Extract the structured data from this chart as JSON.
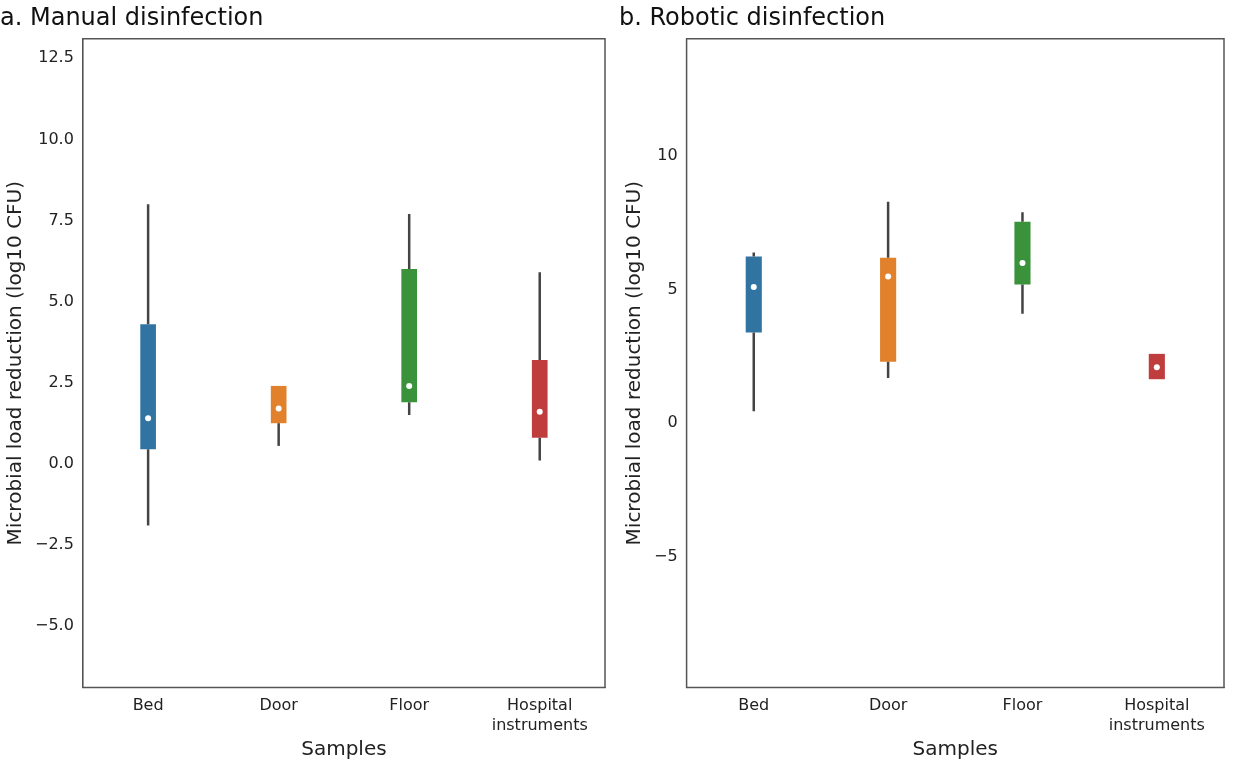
{
  "chart_data": [
    {
      "type": "box",
      "title": "a. Manual disinfection",
      "xlabel": "Samples",
      "ylabel": "Microbial load reduction (log10 CFU)",
      "categories": [
        "Bed",
        "Door",
        "Floor",
        "Hospital instruments"
      ],
      "colors": [
        "#3274a1",
        "#e1812c",
        "#3a923a",
        "#c03d3e"
      ],
      "boxes": [
        {
          "low": -1.9,
          "q1": 0.45,
          "median": 1.4,
          "q3": 4.3,
          "high": 8.0
        },
        {
          "low": 0.55,
          "q1": 1.25,
          "median": 1.7,
          "q3": 2.4,
          "high": 2.4
        },
        {
          "low": 1.5,
          "q1": 1.9,
          "median": 2.4,
          "q3": 6.0,
          "high": 7.7
        },
        {
          "low": 0.1,
          "q1": 0.8,
          "median": 1.6,
          "q3": 3.2,
          "high": 5.9
        }
      ],
      "ylim": [
        -6.9,
        13.1
      ],
      "yticks": [
        {
          "value": -5,
          "label": "−5.0"
        },
        {
          "value": -2.5,
          "label": "−2.5"
        },
        {
          "value": 0,
          "label": "0.0"
        },
        {
          "value": 2.5,
          "label": "2.5"
        },
        {
          "value": 5,
          "label": "5.0"
        },
        {
          "value": 7.5,
          "label": "7.5"
        },
        {
          "value": 10,
          "label": "10.0"
        },
        {
          "value": 12.5,
          "label": "12.5"
        }
      ],
      "grid": false,
      "legend": false
    },
    {
      "type": "box",
      "title": "b. Robotic disinfection",
      "xlabel": "Samples",
      "ylabel": "Microbial load reduction (log10 CFU)",
      "categories": [
        "Bed",
        "Door",
        "Floor",
        "Hospital instruments"
      ],
      "colors": [
        "#3274a1",
        "#e1812c",
        "#3a923a",
        "#c03d3e"
      ],
      "boxes": [
        {
          "low": 0.45,
          "q1": 3.4,
          "median": 5.1,
          "q3": 6.25,
          "high": 6.4
        },
        {
          "low": 1.7,
          "q1": 2.3,
          "median": 5.5,
          "q3": 6.2,
          "high": 8.3
        },
        {
          "low": 4.1,
          "q1": 5.2,
          "median": 6.0,
          "q3": 7.55,
          "high": 7.9
        },
        {
          "low": 1.65,
          "q1": 1.65,
          "median": 2.1,
          "q3": 2.6,
          "high": 2.6
        }
      ],
      "ylim": [
        -9.9,
        14.4
      ],
      "yticks": [
        {
          "value": -5,
          "label": "−5"
        },
        0,
        5,
        10
      ],
      "grid": false,
      "legend": false
    }
  ]
}
